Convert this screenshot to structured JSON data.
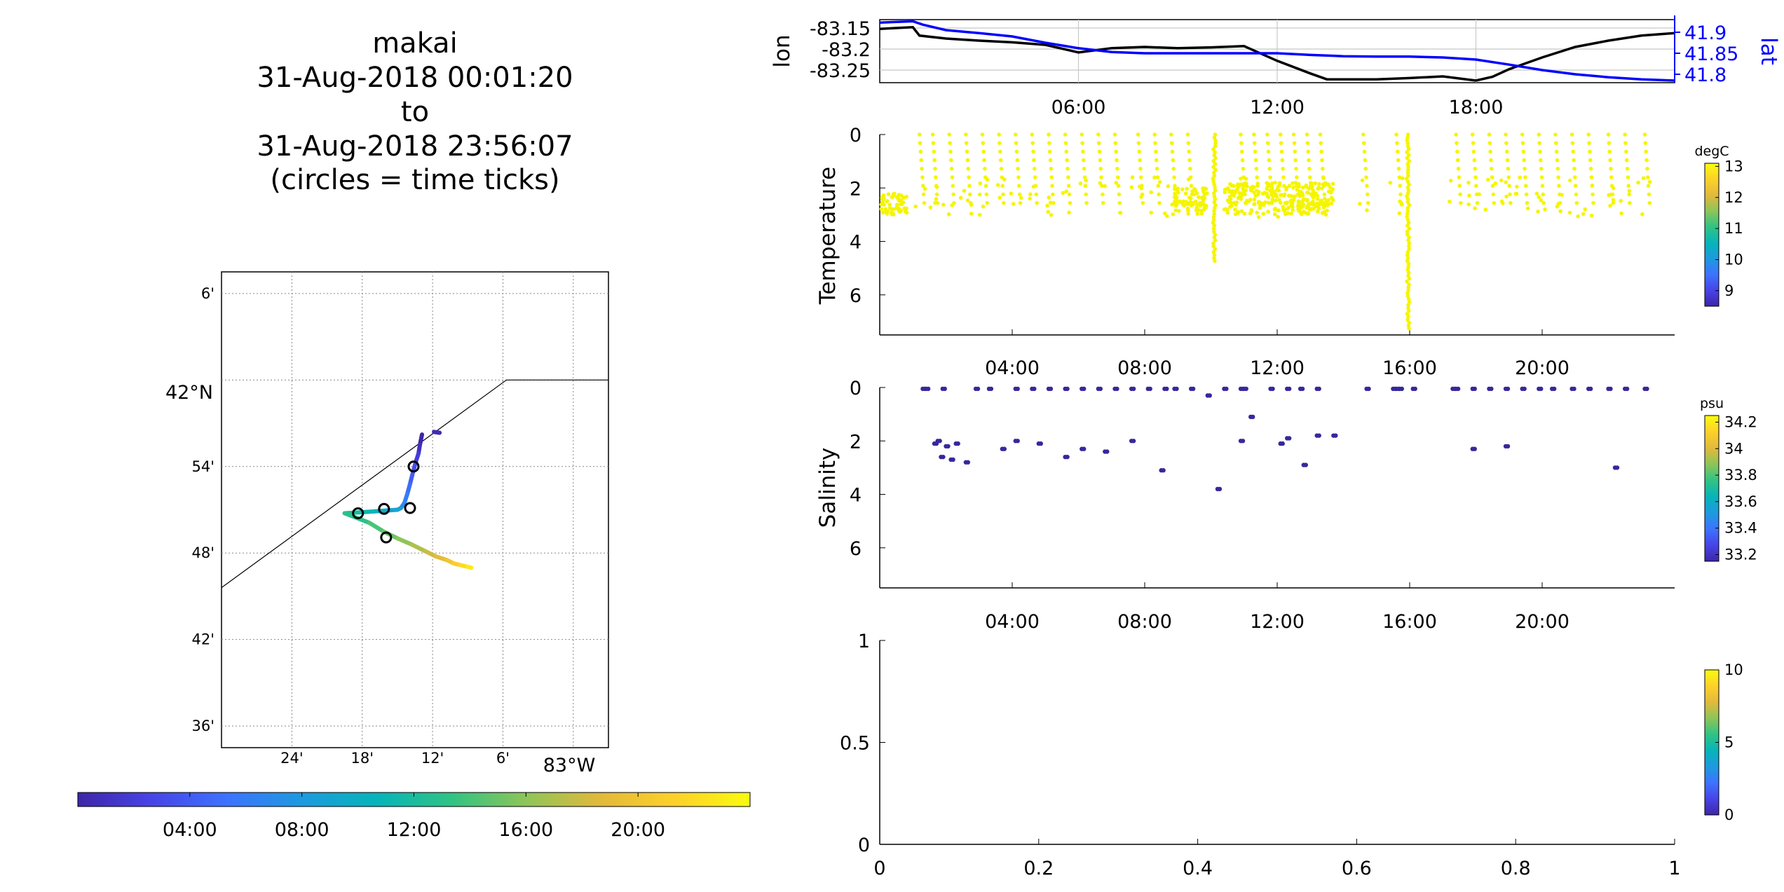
{
  "title": {
    "lines": [
      "makai",
      "31-Aug-2018 00:01:20",
      "to",
      "31-Aug-2018 23:56:07",
      "(circles = time ticks)"
    ]
  },
  "colormap": [
    "#3e26a8",
    "#4744e8",
    "#3d73fe",
    "#1d9adf",
    "#07b4b9",
    "#30c384",
    "#8ec558",
    "#e2b93b",
    "#fdd129",
    "#f9fb0e"
  ],
  "chart_data": [
    {
      "type": "scatter",
      "panel": "map",
      "xaxis": {
        "ticks": [
          "24'",
          "18'",
          "12'",
          "6'"
        ],
        "end_label": "83°W",
        "range": [
          -83.5,
          -82.95
        ]
      },
      "yaxis": {
        "ticks": [
          "6'",
          "54'",
          "48'",
          "42'",
          "36'"
        ],
        "major_label": "42°N",
        "range": [
          41.575,
          42.125
        ]
      },
      "shoreline": [
        [
          -83.5,
          41.76
        ],
        [
          -83.095,
          42.0
        ],
        [
          -82.95,
          42.0
        ]
      ],
      "track": {
        "t": [
          0,
          1,
          2,
          3,
          4,
          5,
          6,
          7,
          8,
          9,
          10,
          11,
          12,
          13,
          14,
          15,
          16,
          17,
          18,
          19,
          20,
          21,
          22,
          23,
          24
        ],
        "lon": [
          -83.215,
          -83.218,
          -83.22,
          -83.224,
          -83.228,
          -83.232,
          -83.236,
          -83.24,
          -83.245,
          -83.25,
          -83.268,
          -83.285,
          -83.305,
          -83.325,
          -83.29,
          -83.27,
          -83.25,
          -83.23,
          -83.21,
          -83.195,
          -83.18,
          -83.17,
          -83.16,
          -83.15,
          -83.145
        ],
        "lat": [
          41.937,
          41.925,
          41.915,
          41.905,
          41.893,
          41.88,
          41.868,
          41.858,
          41.852,
          41.85,
          41.849,
          41.848,
          41.847,
          41.846,
          41.835,
          41.825,
          41.817,
          41.81,
          41.802,
          41.796,
          41.792,
          41.788,
          41.786,
          41.784,
          41.783
        ]
      },
      "end_blob": {
        "lon": [
          -83.198,
          -83.19
        ],
        "lat": [
          41.94,
          41.939
        ]
      },
      "time_tick_circles": {
        "lon": [
          -83.227,
          -83.232,
          -83.269,
          -83.306,
          -83.266
        ],
        "lat": [
          41.9,
          41.852,
          41.851,
          41.846,
          41.818
        ]
      }
    },
    {
      "type": "colorbar",
      "panel": "map-time-colorbar",
      "ticks": [
        "04:00",
        "08:00",
        "12:00",
        "16:00",
        "20:00"
      ],
      "tick_hours": [
        4,
        8,
        12,
        16,
        20
      ],
      "range": [
        0,
        24
      ]
    },
    {
      "type": "line",
      "panel": "lon-lat",
      "ylabel_left": "lon",
      "ylabel_right": "lat",
      "yticks_left": [
        "-83.15",
        "-83.2",
        "-83.25"
      ],
      "yticks_right": [
        "41.9",
        "41.85",
        "41.8"
      ],
      "xticks": [
        "06:00",
        "12:00",
        "18:00"
      ],
      "ylim_left": [
        -83.28,
        -83.13
      ],
      "ylim_right": [
        41.78,
        41.93
      ],
      "xlim": [
        0,
        24
      ],
      "series": [
        {
          "axis": "left",
          "color": "#000000",
          "x": [
            0,
            1,
            1.2,
            2,
            3,
            4,
            5,
            6,
            7,
            8,
            9,
            10,
            11,
            12,
            13,
            13.5,
            14,
            15,
            16,
            17,
            17.5,
            18,
            18.5,
            19,
            20,
            21,
            22,
            23,
            24
          ],
          "y": [
            -83.152,
            -83.148,
            -83.168,
            -83.175,
            -83.18,
            -83.184,
            -83.19,
            -83.208,
            -83.198,
            -83.195,
            -83.198,
            -83.196,
            -83.193,
            -83.228,
            -83.258,
            -83.272,
            -83.272,
            -83.272,
            -83.269,
            -83.265,
            -83.27,
            -83.275,
            -83.266,
            -83.248,
            -83.22,
            -83.195,
            -83.18,
            -83.168,
            -83.162
          ]
        },
        {
          "axis": "right",
          "color": "#0000ff",
          "x": [
            0,
            1,
            1.3,
            2,
            3,
            4,
            5,
            6,
            7,
            8,
            9,
            10,
            11,
            12,
            13,
            14,
            15,
            16,
            17,
            18,
            19,
            20,
            21,
            22,
            23,
            24
          ],
          "y": [
            41.923,
            41.926,
            41.918,
            41.905,
            41.898,
            41.89,
            41.875,
            41.862,
            41.853,
            41.85,
            41.85,
            41.85,
            41.85,
            41.85,
            41.846,
            41.843,
            41.842,
            41.842,
            41.84,
            41.835,
            41.823,
            41.81,
            41.8,
            41.793,
            41.788,
            41.785
          ]
        }
      ]
    },
    {
      "type": "scatter",
      "panel": "temperature",
      "ylabel": "Temperature",
      "yticks": [
        "0",
        "2",
        "4",
        "6"
      ],
      "ylim": [
        0,
        7.5
      ],
      "xticks": [
        "04:00",
        "08:00",
        "12:00",
        "16:00",
        "20:00"
      ],
      "xlim": [
        0,
        24
      ],
      "colorbar": {
        "unit": "degC",
        "ticks": [
          "13",
          "12",
          "11",
          "10",
          "9"
        ],
        "range": [
          8.5,
          13.1
        ]
      },
      "point_color": "#f5f500",
      "profile_hours": [
        1.2,
        1.6,
        2.1,
        2.6,
        3.1,
        3.6,
        4.1,
        4.6,
        5.1,
        5.6,
        6.1,
        6.6,
        7.1,
        7.8,
        8.3,
        8.8,
        9.3,
        10.9,
        11.3,
        11.7,
        12.1,
        12.5,
        12.9,
        13.3,
        14.6,
        15.6,
        17.4,
        17.9,
        18.4,
        18.9,
        19.4,
        19.9,
        20.4,
        20.9,
        21.4,
        22.0,
        22.5,
        23.1
      ],
      "deep_casts": [
        {
          "hour": 10.1,
          "max_depth": 4.8
        },
        {
          "hour": 15.95,
          "max_depth": 7.3
        }
      ],
      "near_surface_band": [
        2.2,
        3.0
      ]
    },
    {
      "type": "scatter",
      "panel": "salinity",
      "ylabel": "Salinity",
      "yticks": [
        "0",
        "2",
        "4",
        "6"
      ],
      "ylim": [
        0,
        7.5
      ],
      "xticks": [
        "04:00",
        "08:00",
        "12:00",
        "16:00",
        "20:00"
      ],
      "xlim": [
        0,
        24
      ],
      "colorbar": {
        "unit": "psu",
        "ticks": [
          "34.2",
          "34",
          "33.8",
          "33.6",
          "33.4",
          "33.2"
        ],
        "range": [
          33.15,
          34.25
        ]
      },
      "point_color": "#35289c",
      "x": [
        1.3,
        1.4,
        1.9,
        2.9,
        3.3,
        4.1,
        4.6,
        5.1,
        5.6,
        6.1,
        6.6,
        7.1,
        7.6,
        8.1,
        8.6,
        8.9,
        9.4,
        9.9,
        10.4,
        10.9,
        11.0,
        11.8,
        12.3,
        12.7,
        13.2,
        14.7,
        15.5,
        15.6,
        15.7,
        16.1,
        17.3,
        17.4,
        17.9,
        18.4,
        18.9,
        19.4,
        19.9,
        20.3,
        20.9,
        21.4,
        22.0,
        22.5,
        23.1,
        1.65,
        1.75,
        1.85,
        2.0,
        2.15,
        2.3,
        2.6,
        3.7,
        4.1,
        4.8,
        5.6,
        6.1,
        6.8,
        7.6,
        8.5,
        10.2,
        10.9,
        11.2,
        12.1,
        12.3,
        12.8,
        13.2,
        13.7,
        17.9,
        18.9,
        22.2
      ],
      "y": [
        0.05,
        0.05,
        0.05,
        0.05,
        0.05,
        0.05,
        0.05,
        0.05,
        0.05,
        0.05,
        0.05,
        0.05,
        0.05,
        0.05,
        0.05,
        0.05,
        0.05,
        0.3,
        0.05,
        0.05,
        0.05,
        0.05,
        0.05,
        0.05,
        0.05,
        0.05,
        0.05,
        0.05,
        0.05,
        0.05,
        0.05,
        0.05,
        0.05,
        0.05,
        0.05,
        0.05,
        0.05,
        0.05,
        0.05,
        0.05,
        0.05,
        0.05,
        0.05,
        2.1,
        2.0,
        2.6,
        2.2,
        2.7,
        2.1,
        2.8,
        2.3,
        2.0,
        2.1,
        2.6,
        2.3,
        2.4,
        2.0,
        3.1,
        3.8,
        2.0,
        1.1,
        2.1,
        1.9,
        2.9,
        1.8,
        1.8,
        2.3,
        2.2,
        3.0
      ]
    },
    {
      "type": "scatter",
      "panel": "empty",
      "xticks": [
        "0",
        "0.2",
        "0.4",
        "0.6",
        "0.8",
        "1"
      ],
      "yticks": [
        "1",
        "0.5",
        "0"
      ],
      "xlim": [
        0,
        1
      ],
      "ylim": [
        0,
        1
      ],
      "colorbar": {
        "unit": "",
        "ticks": [
          "10",
          "5",
          "0"
        ],
        "range": [
          0,
          10
        ]
      }
    }
  ]
}
